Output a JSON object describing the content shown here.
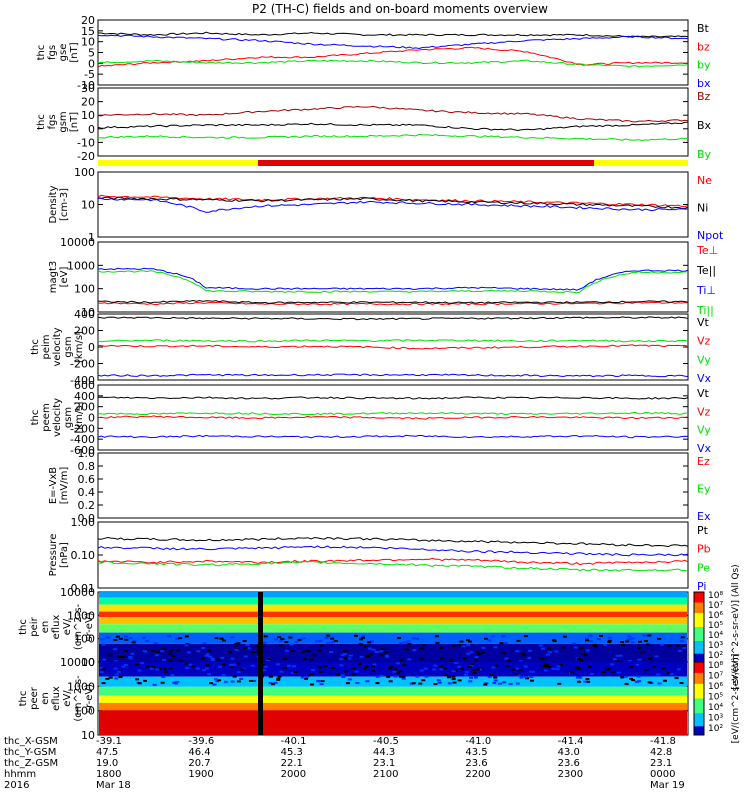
{
  "title": "P2 (TH-C) fields and on-board moments overview",
  "colors": {
    "black": "#000000",
    "red": "#ff0000",
    "green": "#00e000",
    "blue": "#0000ff",
    "darkred": "#a00000",
    "yellow": "#ffff00",
    "barred": "#e00000"
  },
  "chart_data": [
    {
      "type": "line",
      "ylabel": [
        "thc",
        "fgs",
        "gse",
        "[nT]"
      ],
      "ylim": [
        -15,
        20
      ],
      "yticks": [
        "20",
        "15",
        "10",
        "5",
        "0",
        "-5",
        "-10"
      ],
      "series": [
        {
          "name": "Bt",
          "color": "black",
          "values": [
            13,
            12,
            13,
            12,
            13,
            12,
            12,
            12,
            12,
            12,
            11,
            11
          ]
        },
        {
          "name": "bz",
          "color": "red",
          "values": [
            -5,
            -3,
            -2,
            0,
            0,
            2,
            4,
            5,
            3,
            -4,
            -3,
            -3
          ]
        },
        {
          "name": "by",
          "color": "green",
          "values": [
            -3,
            -2,
            -3,
            -3,
            -2,
            -2,
            -3,
            -3,
            -2,
            -4,
            -5,
            -4
          ]
        },
        {
          "name": "bx",
          "color": "blue",
          "values": [
            12,
            11,
            10,
            9,
            7,
            6,
            5,
            7,
            9,
            10,
            11,
            10
          ]
        }
      ]
    },
    {
      "type": "line",
      "ylabel": [
        "thc",
        "fgs",
        "gsm",
        "[nT]"
      ],
      "ylim": [
        -25,
        30
      ],
      "yticks": [
        "30",
        "20",
        "10",
        "0",
        "-10",
        "-20"
      ],
      "series": [
        {
          "name": "Bz",
          "color": "darkred",
          "values": [
            8,
            9,
            8,
            11,
            13,
            15,
            12,
            10,
            9,
            5,
            3,
            4
          ]
        },
        {
          "name": "Bx",
          "color": "black",
          "values": [
            -2,
            -1,
            0,
            0,
            1,
            0,
            0,
            -3,
            -4,
            -1,
            0,
            2
          ]
        },
        {
          "name": "By",
          "color": "green",
          "values": [
            -10,
            -9,
            -10,
            -10,
            -9,
            -9,
            -8,
            -9,
            -10,
            -11,
            -12,
            -11
          ]
        }
      ]
    },
    {
      "type": "line",
      "ylabel": [
        "Density",
        "[cm-3]"
      ],
      "ylim": [
        1,
        100
      ],
      "scale": "log",
      "yticks": [
        "100",
        "10",
        "1"
      ],
      "series": [
        {
          "name": "Ne",
          "color": "red",
          "values": [
            18,
            17,
            15,
            14,
            15,
            16,
            14,
            13,
            12,
            11,
            10,
            9
          ]
        },
        {
          "name": "Ni",
          "color": "black",
          "values": [
            16,
            15,
            14,
            13,
            14,
            15,
            13,
            12,
            11,
            10,
            9,
            8
          ]
        },
        {
          "name": "Npot",
          "color": "blue",
          "values": [
            15,
            14,
            6,
            9,
            10,
            12,
            11,
            10,
            9,
            8,
            7,
            7
          ]
        }
      ]
    },
    {
      "type": "line",
      "ylabel": [
        "magt3",
        "[eV]"
      ],
      "ylim": [
        10,
        10000
      ],
      "scale": "log",
      "yticks": [
        "10000",
        "1000",
        "100",
        "10"
      ],
      "series": [
        {
          "name": "Te⊥",
          "color": "red",
          "values": [
            25,
            22,
            25,
            22,
            22,
            22,
            22,
            22,
            23,
            23,
            25,
            25
          ]
        },
        {
          "name": "Te||",
          "color": "black",
          "values": [
            28,
            26,
            30,
            25,
            26,
            26,
            26,
            25,
            26,
            26,
            28,
            28
          ]
        },
        {
          "name": "Ti⊥",
          "color": "blue",
          "values": [
            700,
            700,
            110,
            100,
            100,
            100,
            100,
            110,
            100,
            90,
            600,
            600
          ]
        },
        {
          "name": "Ti||",
          "color": "green",
          "values": [
            550,
            550,
            80,
            75,
            75,
            75,
            75,
            80,
            80,
            70,
            500,
            500
          ]
        }
      ]
    },
    {
      "type": "line",
      "ylabel": [
        "thc",
        "peim",
        "velocity",
        "gsm",
        "[km/s]"
      ],
      "ylim": [
        -450,
        450
      ],
      "yticks": [
        "400",
        "200",
        "0",
        "-200",
        "-400"
      ],
      "series": [
        {
          "name": "Vt",
          "color": "black",
          "values": [
            400,
            400,
            390,
            390,
            385,
            380,
            385,
            390,
            395,
            400,
            400,
            400
          ]
        },
        {
          "name": "Vz",
          "color": "red",
          "values": [
            20,
            10,
            15,
            0,
            10,
            0,
            -20,
            -10,
            0,
            10,
            20,
            10
          ]
        },
        {
          "name": "Vy",
          "color": "green",
          "values": [
            80,
            90,
            85,
            80,
            90,
            85,
            90,
            90,
            80,
            90,
            80,
            85
          ]
        },
        {
          "name": "Vx",
          "color": "blue",
          "values": [
            -390,
            -390,
            -380,
            -385,
            -380,
            -380,
            -380,
            -385,
            -390,
            -395,
            -390,
            -395
          ]
        }
      ]
    },
    {
      "type": "line",
      "ylabel": [
        "thc",
        "peem",
        "velocity",
        "gsm",
        "[km/s]"
      ],
      "ylim": [
        -650,
        650
      ],
      "yticks": [
        "600",
        "400",
        "200",
        "0",
        "-200",
        "-400",
        "-600"
      ],
      "series": [
        {
          "name": "Vt",
          "color": "black",
          "values": [
            400,
            390,
            400,
            380,
            400,
            390,
            380,
            400,
            390,
            400,
            380,
            390
          ]
        },
        {
          "name": "Vz",
          "color": "red",
          "values": [
            0,
            20,
            0,
            -10,
            10,
            0,
            -20,
            0,
            10,
            0,
            -10,
            0
          ]
        },
        {
          "name": "Vy",
          "color": "green",
          "values": [
            80,
            70,
            90,
            80,
            70,
            80,
            90,
            80,
            70,
            80,
            90,
            80
          ]
        },
        {
          "name": "Vx",
          "color": "blue",
          "values": [
            -380,
            -390,
            -370,
            -380,
            -390,
            -380,
            -370,
            -390,
            -380,
            -370,
            -390,
            -380
          ]
        }
      ]
    },
    {
      "type": "line",
      "ylabel": [
        "E=-VxB",
        "[mV/m]"
      ],
      "ylim": [
        0,
        1
      ],
      "yticks": [
        "1.0",
        "0.8",
        "0.6",
        "0.4",
        "0.2",
        "0.0"
      ],
      "series": [
        {
          "name": "Ez",
          "color": "red",
          "values": []
        },
        {
          "name": "Ey",
          "color": "green",
          "values": []
        },
        {
          "name": "Ex",
          "color": "blue",
          "values": []
        }
      ]
    },
    {
      "type": "line",
      "ylabel": [
        "Pressure",
        "[nPa]"
      ],
      "ylim": [
        0.01,
        1
      ],
      "scale": "log",
      "yticks": [
        "1.00",
        "0.10",
        "0.01"
      ],
      "series": [
        {
          "name": "Pt",
          "color": "black",
          "values": [
            0.32,
            0.3,
            0.28,
            0.3,
            0.33,
            0.31,
            0.28,
            0.26,
            0.24,
            0.22,
            0.2,
            0.19
          ]
        },
        {
          "name": "Pb",
          "color": "red",
          "values": [
            0.065,
            0.06,
            0.065,
            0.06,
            0.065,
            0.07,
            0.075,
            0.07,
            0.06,
            0.055,
            0.06,
            0.065
          ]
        },
        {
          "name": "Pe",
          "color": "green",
          "values": [
            0.06,
            0.055,
            0.05,
            0.055,
            0.06,
            0.055,
            0.05,
            0.045,
            0.04,
            0.035,
            0.035,
            0.035
          ]
        },
        {
          "name": "Pi",
          "color": "blue",
          "values": [
            0.17,
            0.16,
            0.15,
            0.16,
            0.18,
            0.17,
            0.15,
            0.13,
            0.12,
            0.11,
            0.1,
            0.1
          ]
        }
      ]
    },
    {
      "type": "heatmap",
      "ylabel": [
        "thc",
        "peir",
        "en",
        "eflux",
        "eV/",
        "(cm^2-s-",
        "sr-eV)"
      ],
      "scale": "log",
      "yticks": [
        "10000",
        "1000",
        "100",
        "10"
      ],
      "colorbar_ticks": [
        "10⁸",
        "10⁷",
        "10⁶",
        "10⁵",
        "10⁴",
        "10³",
        "10²"
      ],
      "colorbar_label": "[eV/(cm^2-s-sr-eV)] (All Qs)"
    },
    {
      "type": "heatmap",
      "ylabel": [
        "thc",
        "peer",
        "en",
        "eflux",
        "eV/",
        "(cm^2-s-",
        "sr-eV)"
      ],
      "scale": "log",
      "yticks": [
        "10000",
        "1000",
        "100",
        "10"
      ],
      "colorbar_ticks": [
        "10⁸",
        "10⁷",
        "10⁶",
        "10⁵",
        "10⁴",
        "10³",
        "10²"
      ],
      "colorbar_label": "[eV/(cm^2-s-sr-eV)]"
    }
  ],
  "xaxis": {
    "row_labels": [
      "thc_X-GSM",
      "thc_Y-GSM",
      "thc_Z-GSM",
      "hhmm",
      "2016"
    ],
    "ticks": [
      {
        "x": "-39.1",
        "y": "47.5",
        "z": "19.0",
        "t": "1800",
        "d": "Mar 18"
      },
      {
        "x": "-39.6",
        "y": "46.4",
        "z": "20.7",
        "t": "1900",
        "d": ""
      },
      {
        "x": "-40.1",
        "y": "45.3",
        "z": "22.1",
        "t": "2000",
        "d": ""
      },
      {
        "x": "-40.5",
        "y": "44.3",
        "z": "23.1",
        "t": "2100",
        "d": ""
      },
      {
        "x": "-41.0",
        "y": "43.5",
        "z": "23.6",
        "t": "2200",
        "d": ""
      },
      {
        "x": "-41.4",
        "y": "43.0",
        "z": "23.6",
        "t": "2300",
        "d": ""
      },
      {
        "x": "-41.8",
        "y": "42.8",
        "z": "23.1",
        "t": "0000",
        "d": "Mar 19"
      }
    ]
  }
}
